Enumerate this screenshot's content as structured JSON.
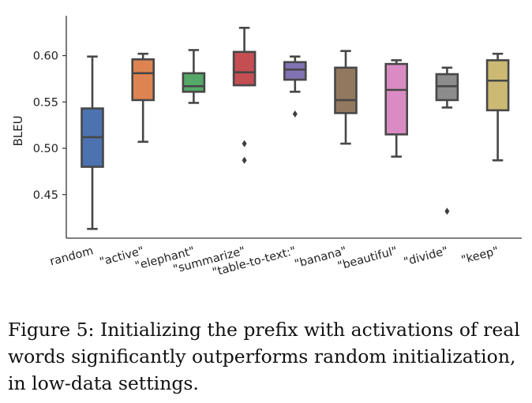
{
  "chart_data": {
    "type": "box",
    "title": "",
    "xlabel": "",
    "ylabel": "BLEU",
    "ylim": [
      0.403,
      0.643
    ],
    "yticks": [
      0.45,
      0.5,
      0.55,
      0.6
    ],
    "ytick_labels": [
      "0.45",
      "0.50",
      "0.55",
      "0.60"
    ],
    "grid": false,
    "categories": [
      "random",
      "\"active\"",
      "\"elephant\"",
      "\"summarize\"",
      "\"table-to-text:\"",
      "\"banana\"",
      "\"beautiful\"",
      "\"divide\"",
      "\"keep\""
    ],
    "boxes": [
      {
        "label": "random",
        "color": "#4c72b0",
        "q1": 0.48,
        "median": 0.512,
        "q3": 0.543,
        "whisker_low": 0.413,
        "whisker_high": 0.599,
        "outliers": []
      },
      {
        "label": "\"active\"",
        "color": "#dd8452",
        "q1": 0.552,
        "median": 0.581,
        "q3": 0.596,
        "whisker_low": 0.507,
        "whisker_high": 0.602,
        "outliers": []
      },
      {
        "label": "\"elephant\"",
        "color": "#55a868",
        "q1": 0.561,
        "median": 0.567,
        "q3": 0.581,
        "whisker_low": 0.549,
        "whisker_high": 0.606,
        "outliers": []
      },
      {
        "label": "\"summarize\"",
        "color": "#c44e52",
        "q1": 0.568,
        "median": 0.582,
        "q3": 0.604,
        "whisker_low": 0.568,
        "whisker_high": 0.63,
        "outliers": [
          0.505,
          0.487
        ]
      },
      {
        "label": "\"table-to-text:\"",
        "color": "#8172b3",
        "q1": 0.574,
        "median": 0.585,
        "q3": 0.593,
        "whisker_low": 0.561,
        "whisker_high": 0.599,
        "outliers": [
          0.537
        ]
      },
      {
        "label": "\"banana\"",
        "color": "#937860",
        "q1": 0.538,
        "median": 0.552,
        "q3": 0.587,
        "whisker_low": 0.505,
        "whisker_high": 0.605,
        "outliers": []
      },
      {
        "label": "\"beautiful\"",
        "color": "#da8bc3",
        "q1": 0.515,
        "median": 0.563,
        "q3": 0.591,
        "whisker_low": 0.491,
        "whisker_high": 0.595,
        "outliers": []
      },
      {
        "label": "\"divide\"",
        "color": "#8c8c8c",
        "q1": 0.552,
        "median": 0.567,
        "q3": 0.58,
        "whisker_low": 0.544,
        "whisker_high": 0.587,
        "outliers": [
          0.432
        ]
      },
      {
        "label": "\"keep\"",
        "color": "#ccb974",
        "q1": 0.541,
        "median": 0.573,
        "q3": 0.595,
        "whisker_low": 0.487,
        "whisker_high": 0.602,
        "outliers": []
      }
    ]
  },
  "caption": {
    "text": "Figure 5:  Initializing the prefix with activations of real words significantly outperforms random initialization, in low-data settings."
  }
}
